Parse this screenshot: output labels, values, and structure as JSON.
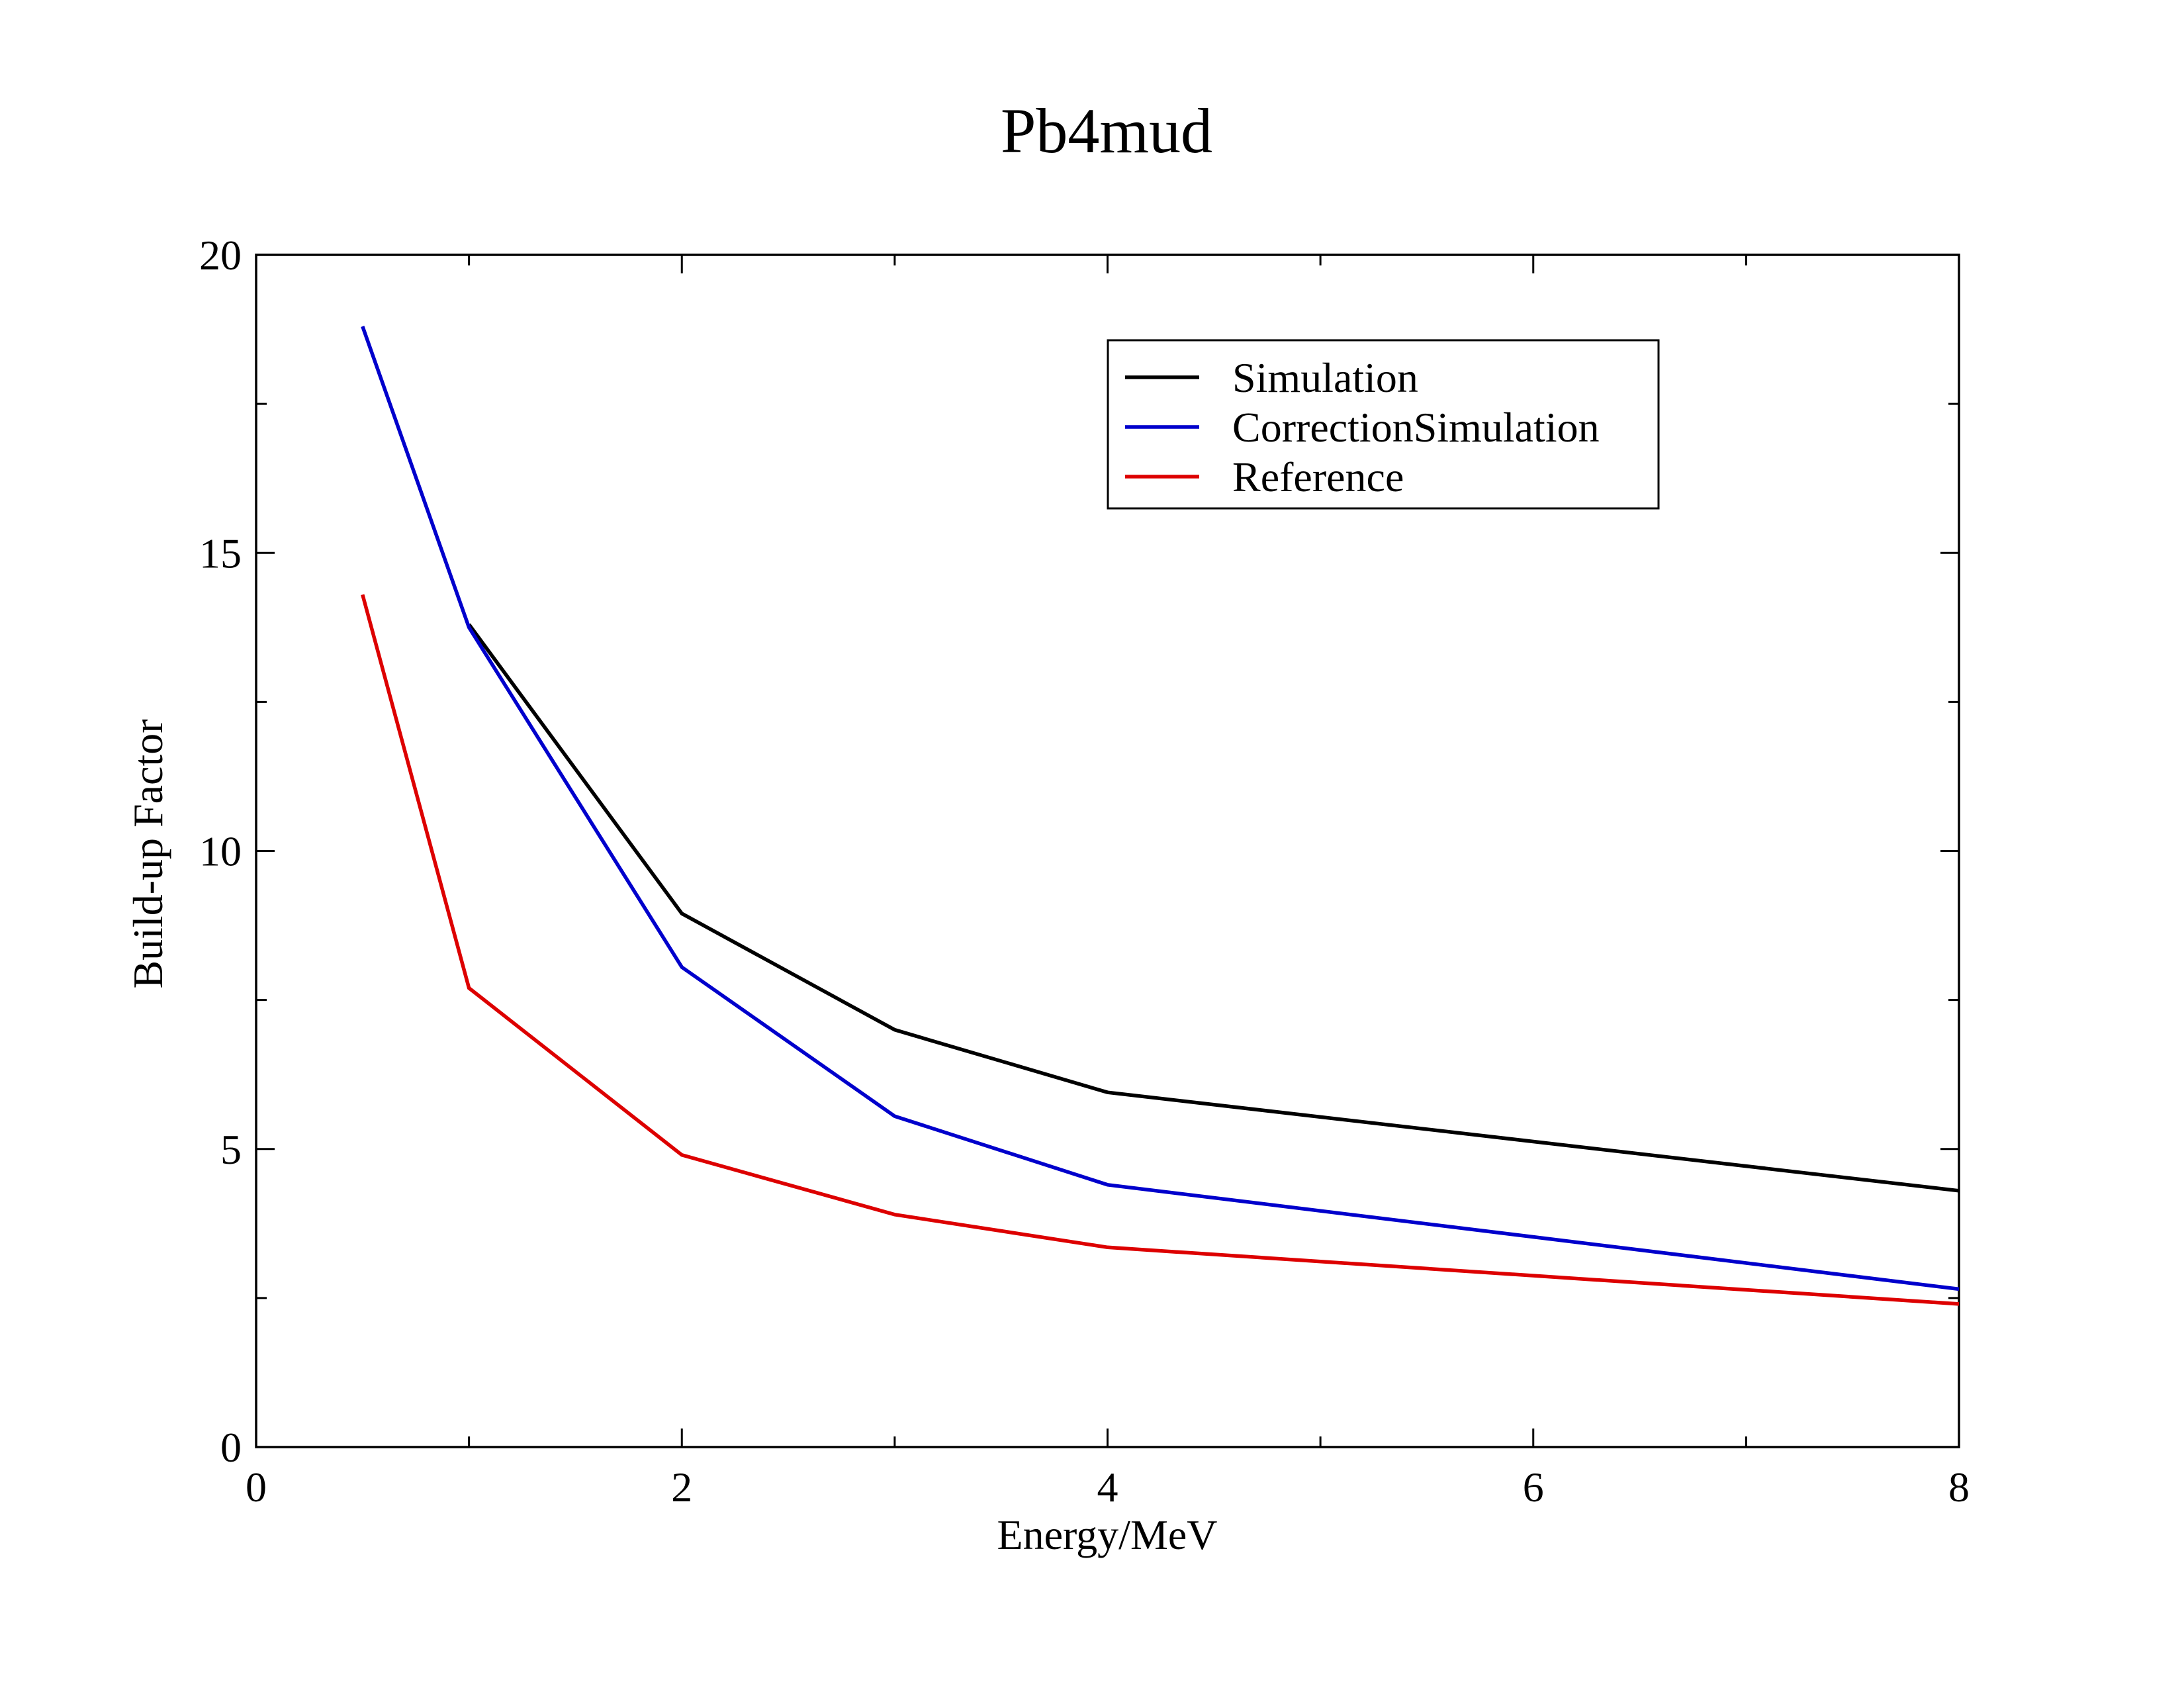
{
  "chart_data": {
    "type": "line",
    "title": "Pb4mud",
    "xlabel": "Energy/MeV",
    "ylabel": "Build-up Factor",
    "xlim": [
      0,
      8
    ],
    "ylim": [
      0,
      20
    ],
    "x_ticks": [
      "0",
      "2",
      "4",
      "6",
      "8"
    ],
    "y_ticks": [
      "0",
      "5",
      "10",
      "15",
      "20"
    ],
    "x_minor_step": 1,
    "y_minor_step": 2.5,
    "grid": false,
    "legend_position": "top-right",
    "series": [
      {
        "name": "Simulation",
        "color": "#000000",
        "x": [
          1,
          2,
          3,
          4,
          8
        ],
        "y": [
          13.8,
          8.95,
          7.0,
          5.95,
          4.3
        ]
      },
      {
        "name": "CorrectionSimulation",
        "color": "#0000cc",
        "x": [
          0.5,
          1,
          2,
          3,
          4,
          8
        ],
        "y": [
          18.8,
          13.75,
          8.05,
          5.55,
          4.4,
          2.65
        ]
      },
      {
        "name": "Reference",
        "color": "#dd0000",
        "x": [
          0.5,
          1,
          2,
          3,
          4,
          8
        ],
        "y": [
          14.3,
          7.7,
          4.9,
          3.9,
          3.35,
          2.4
        ]
      }
    ]
  }
}
